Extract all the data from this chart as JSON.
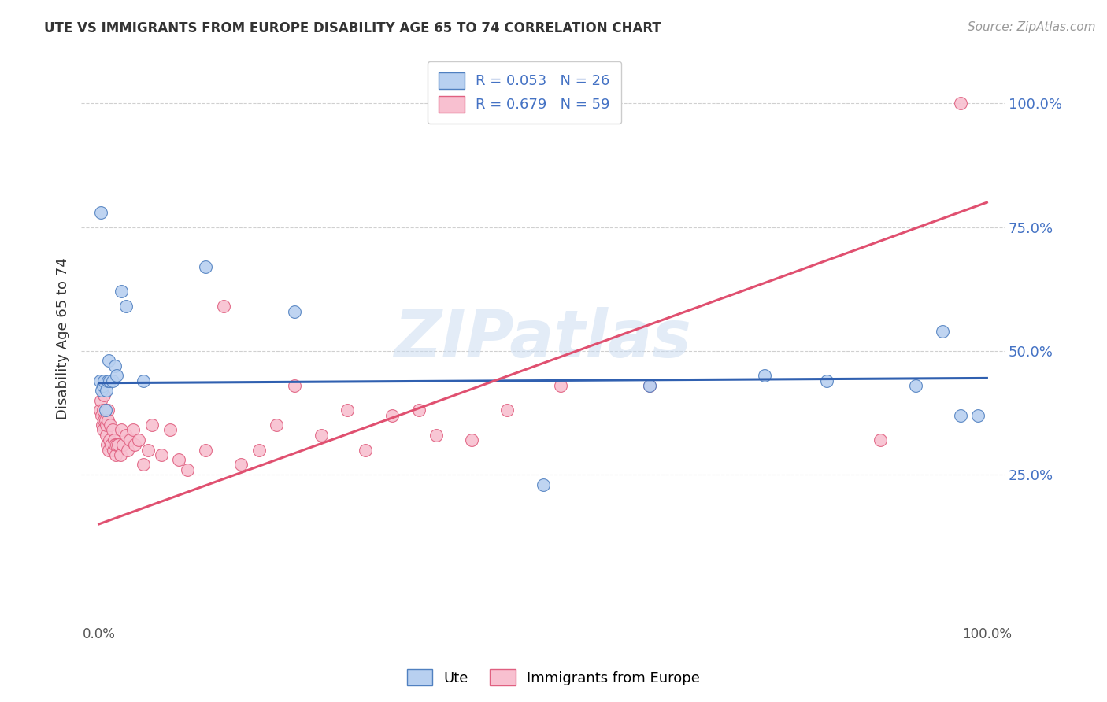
{
  "title": "UTE VS IMMIGRANTS FROM EUROPE DISABILITY AGE 65 TO 74 CORRELATION CHART",
  "source": "Source: ZipAtlas.com",
  "ylabel": "Disability Age 65 to 74",
  "legend_ute_label": "Ute",
  "legend_immig_label": "Immigrants from Europe",
  "ute_R": "0.053",
  "ute_N": "26",
  "immig_R": "0.679",
  "immig_N": "59",
  "xlim": [
    -0.02,
    1.02
  ],
  "ylim": [
    -0.05,
    1.1
  ],
  "ytick_values": [
    0.25,
    0.5,
    0.75,
    1.0
  ],
  "ytick_labels": [
    "25.0%",
    "50.0%",
    "75.0%",
    "100.0%"
  ],
  "xtick_values": [
    0.0,
    1.0
  ],
  "xtick_labels": [
    "0.0%",
    "100.0%"
  ],
  "grid_color": "#d0d0d0",
  "background_color": "#ffffff",
  "ute_fill_color": "#b8d0f0",
  "ute_edge_color": "#5080c0",
  "immig_fill_color": "#f8c0d0",
  "immig_edge_color": "#e06080",
  "ute_line_color": "#3060b0",
  "immig_line_color": "#e05070",
  "watermark_text": "ZIPatlas",
  "watermark_color": "#c8daf0",
  "ute_x": [
    0.001,
    0.003,
    0.005,
    0.006,
    0.007,
    0.008,
    0.01,
    0.011,
    0.012,
    0.015,
    0.018,
    0.02,
    0.025,
    0.03,
    0.05,
    0.12,
    0.22,
    0.5,
    0.62,
    0.75,
    0.82,
    0.92,
    0.95,
    0.97,
    0.99,
    0.002
  ],
  "ute_y": [
    0.44,
    0.42,
    0.43,
    0.44,
    0.38,
    0.42,
    0.44,
    0.48,
    0.44,
    0.44,
    0.47,
    0.45,
    0.62,
    0.59,
    0.44,
    0.67,
    0.58,
    0.23,
    0.43,
    0.45,
    0.44,
    0.43,
    0.54,
    0.37,
    0.37,
    0.78
  ],
  "immig_x": [
    0.001,
    0.002,
    0.003,
    0.004,
    0.005,
    0.005,
    0.006,
    0.006,
    0.007,
    0.008,
    0.008,
    0.009,
    0.01,
    0.01,
    0.011,
    0.012,
    0.013,
    0.014,
    0.015,
    0.016,
    0.017,
    0.018,
    0.019,
    0.02,
    0.022,
    0.024,
    0.025,
    0.027,
    0.03,
    0.032,
    0.035,
    0.038,
    0.04,
    0.045,
    0.05,
    0.055,
    0.06,
    0.07,
    0.08,
    0.09,
    0.1,
    0.12,
    0.14,
    0.16,
    0.18,
    0.2,
    0.22,
    0.25,
    0.28,
    0.3,
    0.33,
    0.36,
    0.38,
    0.42,
    0.46,
    0.52,
    0.62,
    0.88,
    0.97
  ],
  "immig_y": [
    0.38,
    0.4,
    0.37,
    0.35,
    0.38,
    0.34,
    0.36,
    0.41,
    0.36,
    0.33,
    0.35,
    0.31,
    0.38,
    0.36,
    0.3,
    0.32,
    0.35,
    0.31,
    0.34,
    0.3,
    0.32,
    0.31,
    0.29,
    0.31,
    0.31,
    0.29,
    0.34,
    0.31,
    0.33,
    0.3,
    0.32,
    0.34,
    0.31,
    0.32,
    0.27,
    0.3,
    0.35,
    0.29,
    0.34,
    0.28,
    0.26,
    0.3,
    0.59,
    0.27,
    0.3,
    0.35,
    0.43,
    0.33,
    0.38,
    0.3,
    0.37,
    0.38,
    0.33,
    0.32,
    0.38,
    0.43,
    0.43,
    0.32,
    1.0
  ],
  "immig_line_start_y": 0.15,
  "immig_line_end_y": 0.8,
  "ute_line_start_y": 0.435,
  "ute_line_end_y": 0.445
}
